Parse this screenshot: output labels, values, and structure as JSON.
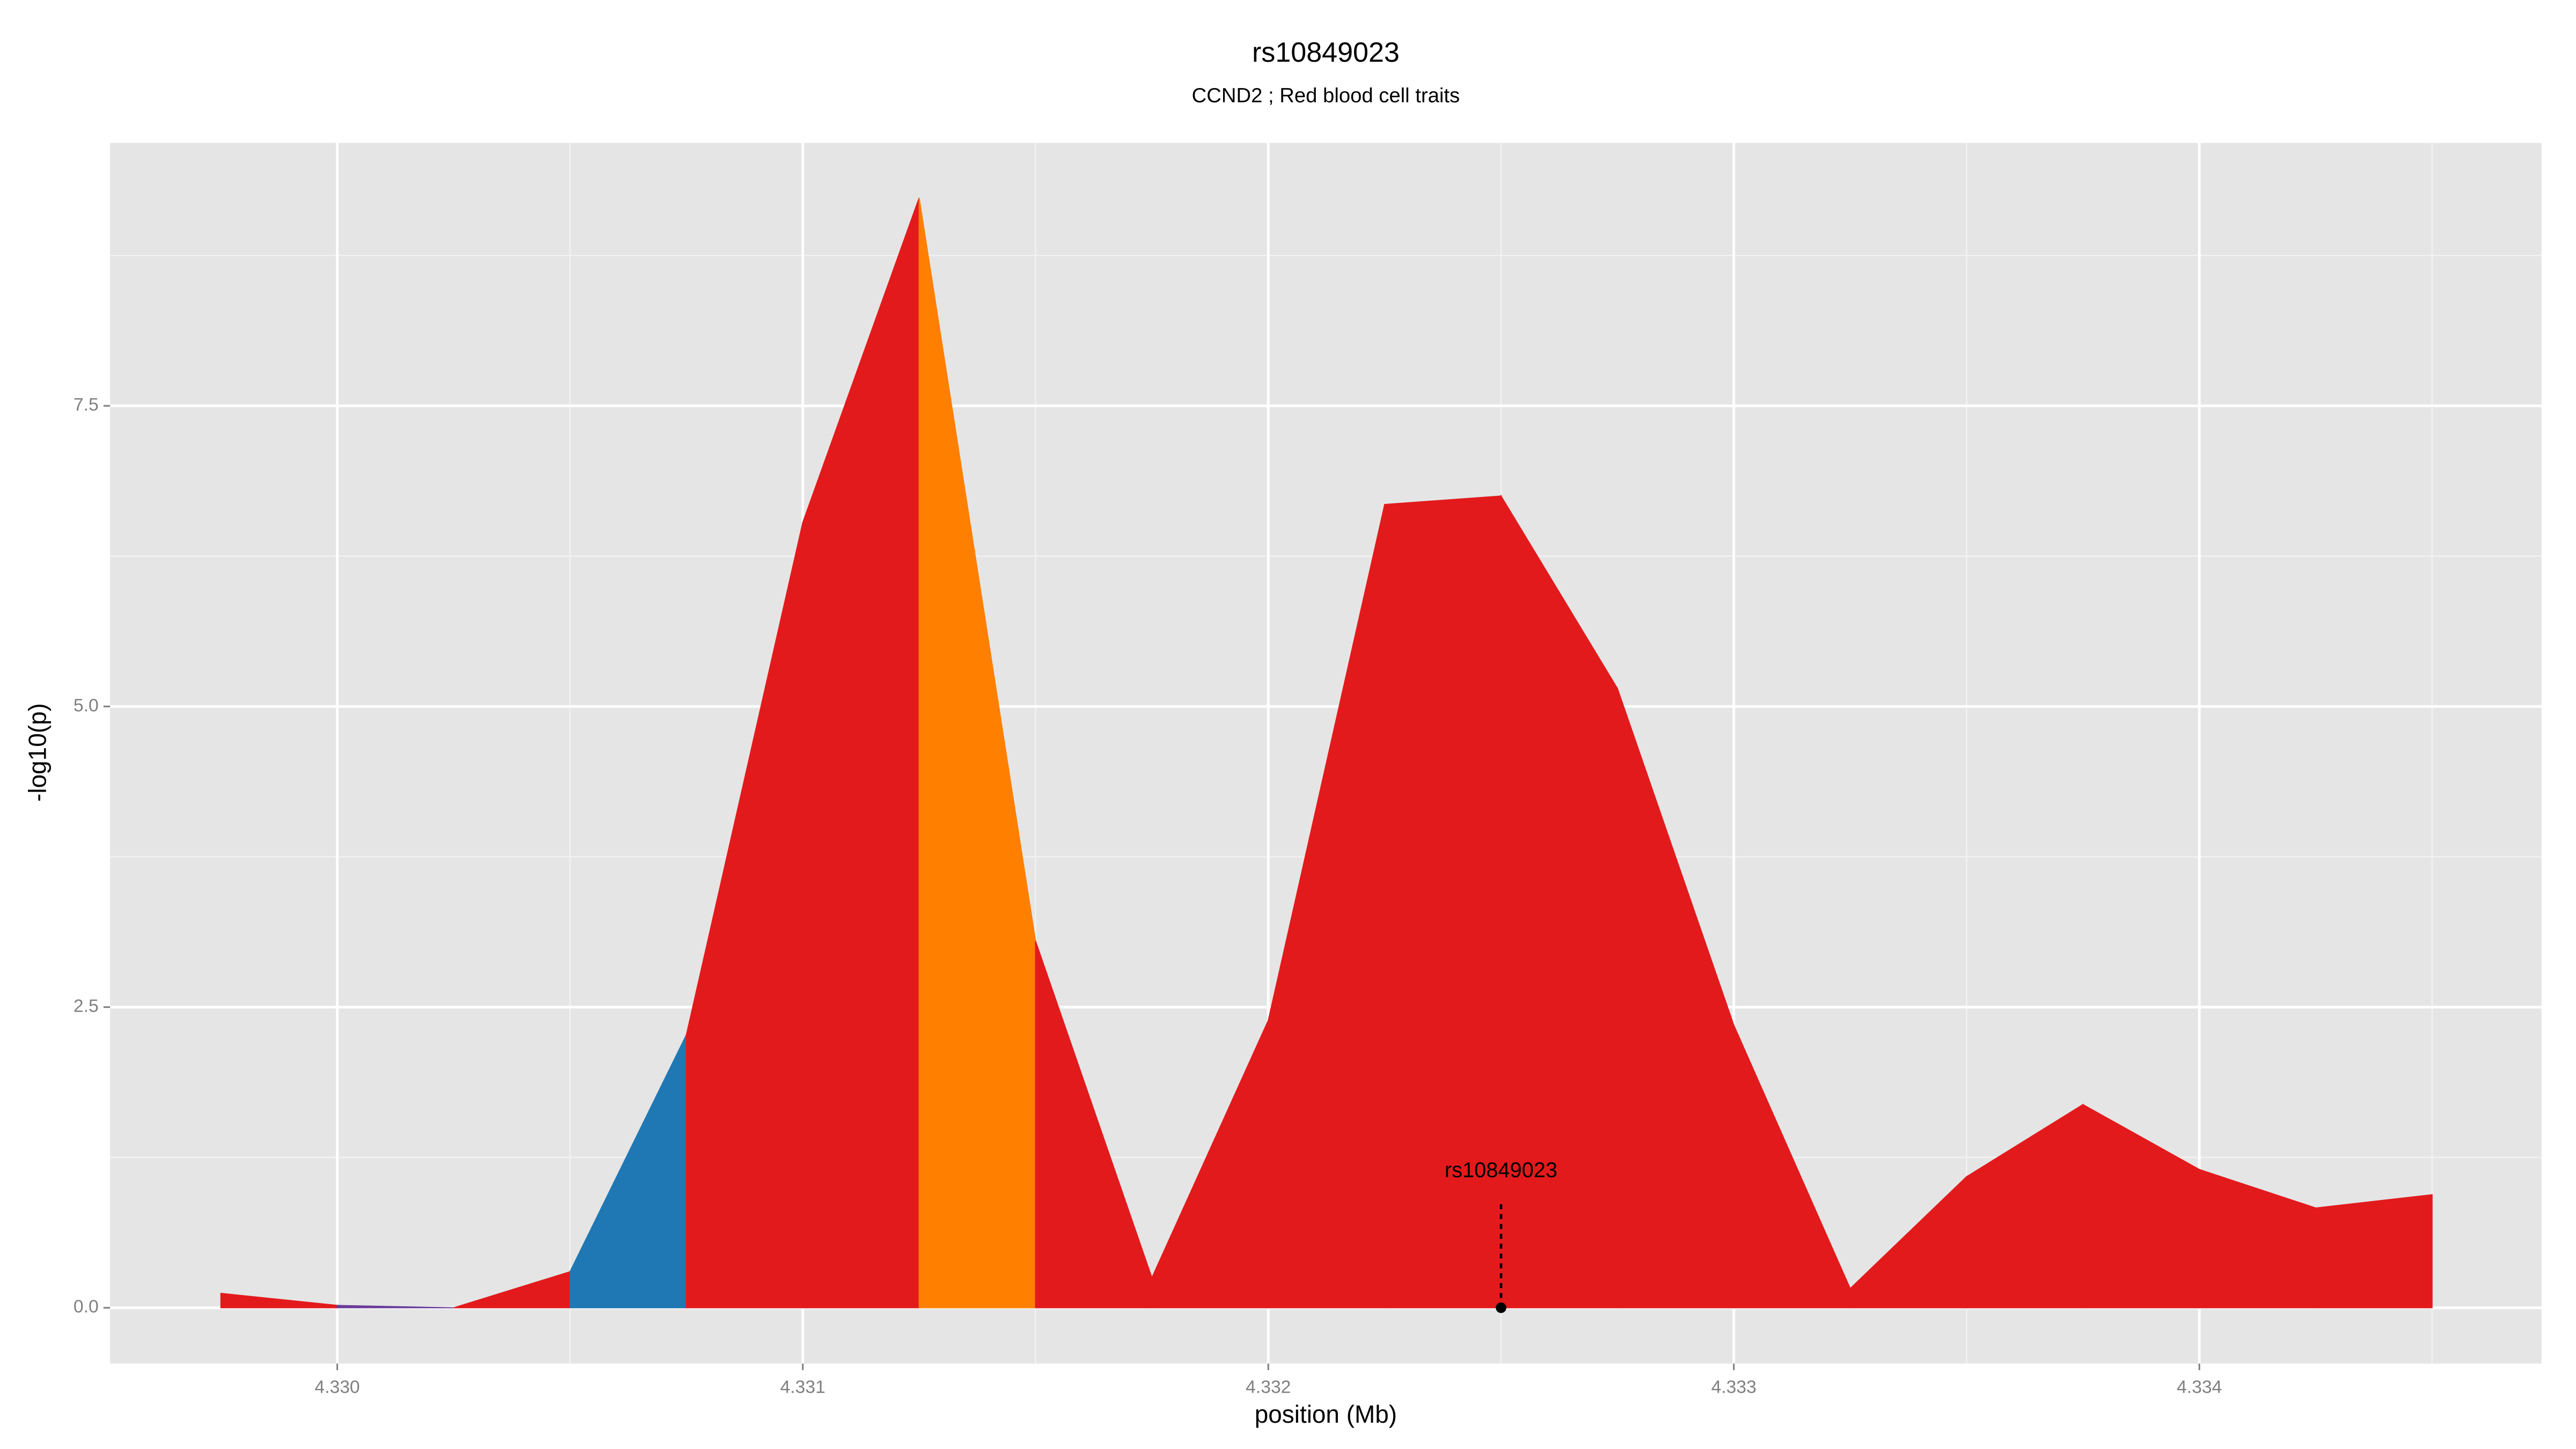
{
  "chart_data": {
    "type": "area",
    "title": "rs10849023",
    "subtitle": "CCND2 ; Red blood cell traits",
    "xlabel": "position (Mb)",
    "ylabel": "-log10(p)",
    "x": [
      4.32975,
      4.33,
      4.33025,
      4.3305,
      4.33075,
      4.331,
      4.33125,
      4.3315,
      4.33175,
      4.332,
      4.33225,
      4.3325,
      4.33275,
      4.333,
      4.33325,
      4.3335,
      4.33375,
      4.334,
      4.33425,
      4.3345
    ],
    "values": [
      0.12,
      0.02,
      0.0,
      0.3,
      2.27,
      6.53,
      9.23,
      3.05,
      0.25,
      2.39,
      6.68,
      6.75,
      5.15,
      2.35,
      0.16,
      1.09,
      1.69,
      1.15,
      0.83,
      0.94
    ],
    "colors": [
      "#e31a1c",
      "#e31a1c",
      "#6a3d9a",
      "#e31a1c",
      "#1f78b4",
      "#e31a1c",
      "#e31a1c",
      "#ff7f00",
      "#e31a1c",
      "#e31a1c",
      "#e31a1c",
      "#e31a1c",
      "#e31a1c",
      "#e31a1c",
      "#e31a1c",
      "#e31a1c",
      "#e31a1c",
      "#e31a1c",
      "#e31a1c",
      "#e31a1c"
    ],
    "xlim": [
      4.329512,
      4.334735
    ],
    "ylim": [
      -0.464,
      9.686
    ],
    "xticks": [
      {
        "value": 4.33,
        "label": "4.330"
      },
      {
        "value": 4.331,
        "label": "4.331"
      },
      {
        "value": 4.332,
        "label": "4.332"
      },
      {
        "value": 4.333,
        "label": "4.333"
      },
      {
        "value": 4.334,
        "label": "4.334"
      }
    ],
    "yticks": [
      {
        "value": 0,
        "label": "0.0"
      },
      2.5,
      {
        "value": 5,
        "label": "5.0"
      },
      7.5
    ],
    "grid": true,
    "annotation": {
      "label": "rs10849023",
      "x": 4.3325,
      "y": 0
    }
  }
}
